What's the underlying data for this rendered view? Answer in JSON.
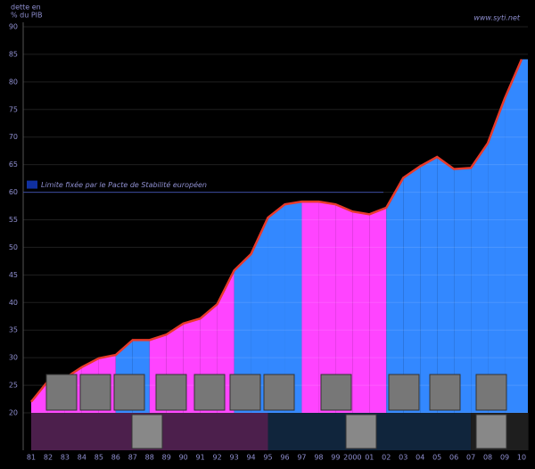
{
  "chart_data": {
    "type": "area",
    "y_label_lines": [
      "dette en",
      "% du PIB"
    ],
    "source": "www.syti.net",
    "categories": [
      "81",
      "82",
      "83",
      "84",
      "85",
      "86",
      "87",
      "88",
      "89",
      "90",
      "91",
      "92",
      "93",
      "94",
      "95",
      "96",
      "97",
      "98",
      "99",
      "2000",
      "01",
      "02",
      "03",
      "04",
      "05",
      "06",
      "07",
      "08",
      "09",
      "10"
    ],
    "values": [
      22,
      25.8,
      26.3,
      28.3,
      29.9,
      30.5,
      33.2,
      33.2,
      34.2,
      36.2,
      37.1,
      39.7,
      45.8,
      48.8,
      55.4,
      57.8,
      58.3,
      58.3,
      57.8,
      56.5,
      56,
      57.2,
      62.6,
      64.7,
      66.4,
      64.2,
      64.4,
      68.9,
      77,
      84.1
    ],
    "colors": [
      "#ff44ff",
      "#ff44ff",
      "#ff44ff",
      "#ff44ff",
      "#ff44ff",
      "#3388ff",
      "#3388ff",
      "#ff44ff",
      "#ff44ff",
      "#ff44ff",
      "#ff44ff",
      "#ff44ff",
      "#3388ff",
      "#3388ff",
      "#3388ff",
      "#3388ff",
      "#ff44ff",
      "#ff44ff",
      "#ff44ff",
      "#ff44ff",
      "#ff44ff",
      "#3388ff",
      "#3388ff",
      "#3388ff",
      "#3388ff",
      "#3388ff",
      "#3388ff",
      "#3388ff",
      "#3388ff",
      "#3388ff"
    ],
    "line_color": "#e83a2a",
    "ylim": [
      20,
      90
    ],
    "yticks": [
      20,
      25,
      30,
      35,
      40,
      45,
      50,
      55,
      60,
      65,
      70,
      75,
      80,
      85,
      90
    ],
    "grid": true,
    "annotation": {
      "value": 60,
      "label": "Limite fixée par le Pacte de Stabilité européen"
    }
  }
}
